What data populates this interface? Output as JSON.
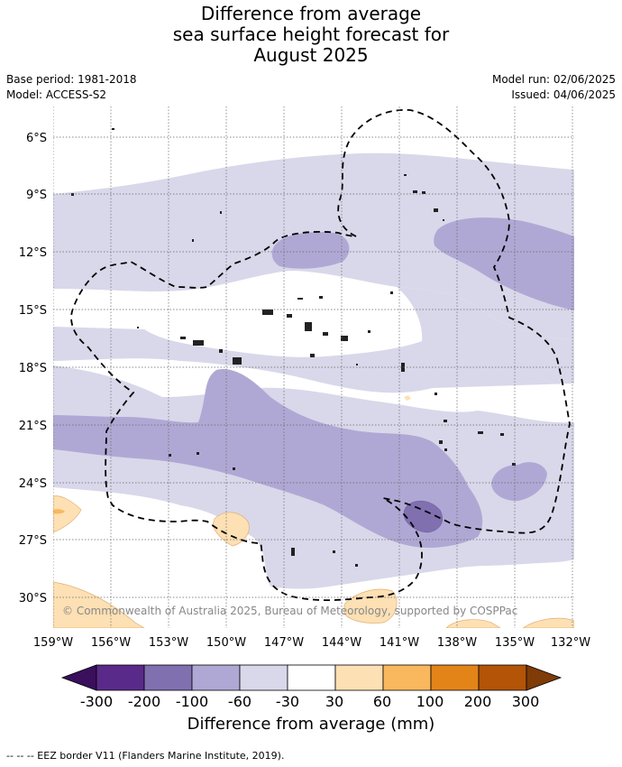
{
  "title": {
    "line1": "Difference from average",
    "line2": "sea surface height forecast for",
    "line3": "August 2025"
  },
  "meta": {
    "base_period": "Base period: 1981-2018",
    "model": "Model: ACCESS-S2",
    "model_run": "Model run: 02/06/2025",
    "issued": "Issued: 04/06/2025"
  },
  "map": {
    "lat_labels": [
      "6°S",
      "9°S",
      "12°S",
      "15°S",
      "18°S",
      "21°S",
      "24°S",
      "27°S",
      "30°S"
    ],
    "lon_labels": [
      "159°W",
      "156°W",
      "153°W",
      "150°W",
      "147°W",
      "144°W",
      "141°W",
      "138°W",
      "135°W",
      "132°W"
    ],
    "copyright": "© Commonwealth of Australia 2025, Bureau of Meteorology, supported by COSPPac"
  },
  "colorbar": {
    "label": "Difference from average (mm)",
    "ticks": [
      "-300",
      "-200",
      "-100",
      "-60",
      "-30",
      "30",
      "60",
      "100",
      "200",
      "300"
    ],
    "colors": [
      "#3a0f5c",
      "#5a2a8a",
      "#8070b0",
      "#b0a8d4",
      "#d8d8ea",
      "#ffffff",
      "#fde0b4",
      "#f9b85e",
      "#e38419",
      "#b35407",
      "#7f3b08"
    ]
  },
  "footnote": "--  --  -- EEZ border V11 (Flanders Marine Institute, 2019)."
}
